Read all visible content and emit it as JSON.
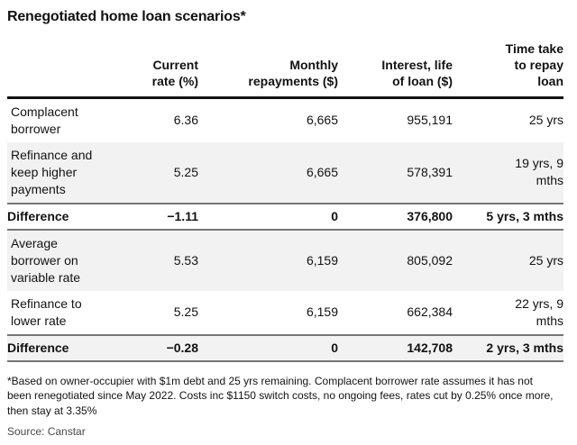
{
  "title": "Renegotiated home loan scenarios*",
  "table": {
    "columns": [
      {
        "label": ""
      },
      {
        "label": "Current\nrate (%)"
      },
      {
        "label": "Monthly\nrepayments ($)"
      },
      {
        "label": "Interest, life\nof loan ($)"
      },
      {
        "label": "Time take\nto repay\nloan"
      }
    ],
    "rows": [
      {
        "cells": [
          "Complacent\nborrower",
          "6.36",
          "6,665",
          "955,191",
          "25 yrs"
        ],
        "shaded": false,
        "diff": false
      },
      {
        "cells": [
          "Refinance and\nkeep higher\npayments",
          "5.25",
          "6,665",
          "578,391",
          "19 yrs, 9\nmths"
        ],
        "shaded": true,
        "diff": false
      },
      {
        "cells": [
          "Difference",
          "−1.11",
          "0",
          "376,800",
          "5 yrs, 3 mths"
        ],
        "shaded": false,
        "diff": true
      },
      {
        "cells": [
          "Average\nborrower on\nvariable rate",
          "5.53",
          "6,159",
          "805,092",
          "25 yrs"
        ],
        "shaded": true,
        "diff": false
      },
      {
        "cells": [
          "Refinance to\nlower rate",
          "5.25",
          "6,159",
          "662,384",
          "22 yrs, 9\nmths"
        ],
        "shaded": false,
        "diff": false
      },
      {
        "cells": [
          "Difference",
          "−0.28",
          "0",
          "142,708",
          "2 yrs, 3 mths"
        ],
        "shaded": true,
        "diff": true
      }
    ]
  },
  "footnote": "*Based on owner-occupier with $1m debt and 25 yrs remaining. Complacent borrower rate assumes it has not\nbeen renegotiated since May 2022. Costs inc $1150 switch costs, no ongoing fees, rates cut by 0.25% once more,\nthen stay at 3.35%",
  "source": "Source: Canstar",
  "colors": {
    "text": "#121212",
    "shaded_row": "#f2f2f2",
    "header_rule": "#121212",
    "group_rule": "#767676",
    "source_text": "#494949"
  },
  "chart_data": {
    "type": "table",
    "title": "Renegotiated home loan scenarios*",
    "columns": [
      "",
      "Current rate (%)",
      "Monthly repayments ($)",
      "Interest, life of loan ($)",
      "Time take to repay loan"
    ],
    "rows": [
      [
        "Complacent borrower",
        6.36,
        6665,
        955191,
        "25 yrs"
      ],
      [
        "Refinance and keep higher payments",
        5.25,
        6665,
        578391,
        "19 yrs, 9 mths"
      ],
      [
        "Difference",
        -1.11,
        0,
        376800,
        "5 yrs, 3 mths"
      ],
      [
        "Average borrower on variable rate",
        5.53,
        6159,
        805092,
        "25 yrs"
      ],
      [
        "Refinance to lower rate",
        5.25,
        6159,
        662384,
        "22 yrs, 9 mths"
      ],
      [
        "Difference",
        -0.28,
        0,
        142708,
        "2 yrs, 3 mths"
      ]
    ],
    "footnote": "*Based on owner-occupier with $1m debt and 25 yrs remaining. Complacent borrower rate assumes it has not been renegotiated since May 2022. Costs inc $1150 switch costs, no ongoing fees, rates cut by 0.25% once more, then stay at 3.35%",
    "source": "Canstar",
    "layout": {
      "row_shading": "alternate",
      "difference_rows_bold": true,
      "value_alignment": "right"
    }
  }
}
